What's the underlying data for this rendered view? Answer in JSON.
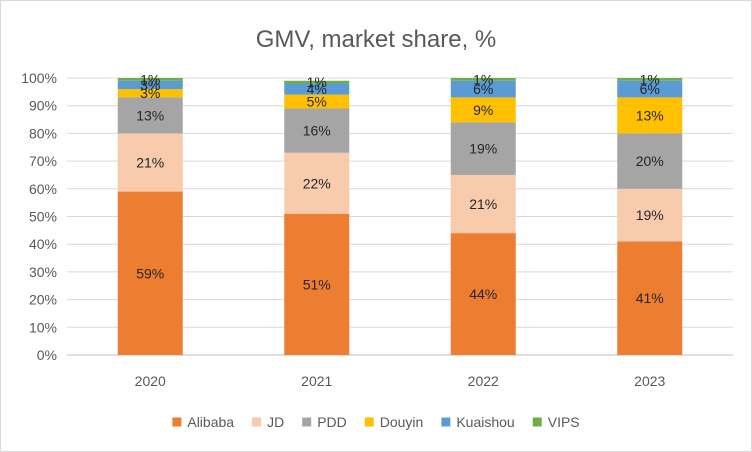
{
  "chart_data": {
    "type": "bar",
    "stacked": true,
    "title": "GMV, market share, %",
    "xlabel": "",
    "ylabel": "",
    "categories": [
      "2020",
      "2021",
      "2022",
      "2023"
    ],
    "ylim": [
      0,
      100
    ],
    "yticks": [
      "0%",
      "10%",
      "20%",
      "30%",
      "40%",
      "50%",
      "60%",
      "70%",
      "80%",
      "90%",
      "100%"
    ],
    "grid": true,
    "legend_position": "bottom",
    "series": [
      {
        "name": "Alibaba",
        "color": "#ED7D31",
        "values": [
          59,
          51,
          44,
          41
        ],
        "labels": [
          "59%",
          "51%",
          "44%",
          "41%"
        ]
      },
      {
        "name": "JD",
        "color": "#F8CBAD",
        "values": [
          21,
          22,
          21,
          19
        ],
        "labels": [
          "21%",
          "22%",
          "21%",
          "19%"
        ]
      },
      {
        "name": "PDD",
        "color": "#A5A5A5",
        "values": [
          13,
          16,
          19,
          20
        ],
        "labels": [
          "13%",
          "16%",
          "19%",
          "20%"
        ]
      },
      {
        "name": "Douyin",
        "color": "#FFC000",
        "values": [
          3,
          5,
          9,
          13
        ],
        "labels": [
          "3%",
          "5%",
          "9%",
          "13%"
        ]
      },
      {
        "name": "Kuaishou",
        "color": "#5B9BD5",
        "values": [
          3,
          4,
          6,
          6
        ],
        "labels": [
          "3%",
          "4%",
          "6%",
          "6%"
        ]
      },
      {
        "name": "VIPS",
        "color": "#70AD47",
        "values": [
          1,
          1,
          1,
          1
        ],
        "labels": [
          "1%",
          "1%",
          "1%",
          "1%"
        ]
      }
    ]
  }
}
